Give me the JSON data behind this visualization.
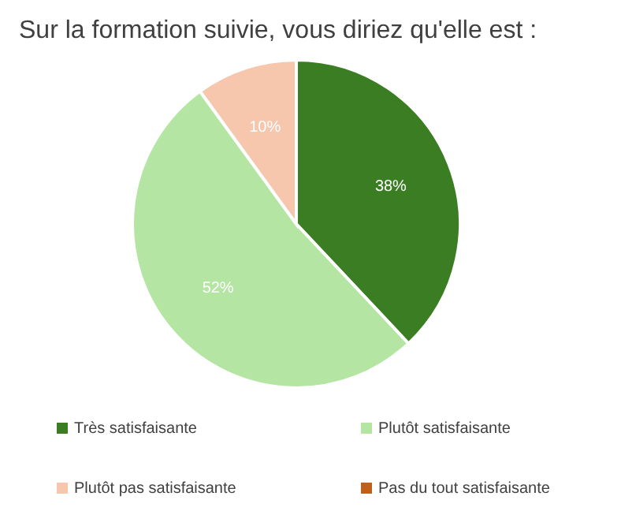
{
  "chart_data": {
    "type": "pie",
    "title": "Sur la formation suivie, vous diriez qu'elle est :",
    "categories": [
      "Très satisfaisante",
      "Plutôt satisfaisante",
      "Plutôt pas satisfaisante",
      "Pas du tout satisfaisante"
    ],
    "values": [
      38,
      52,
      10,
      0
    ],
    "colors": [
      "#3b7d23",
      "#b4e5a2",
      "#f6c6ad",
      "#c05f1c"
    ],
    "value_labels": [
      "38%",
      "52%",
      "10%",
      null
    ],
    "legend": "bottom"
  }
}
